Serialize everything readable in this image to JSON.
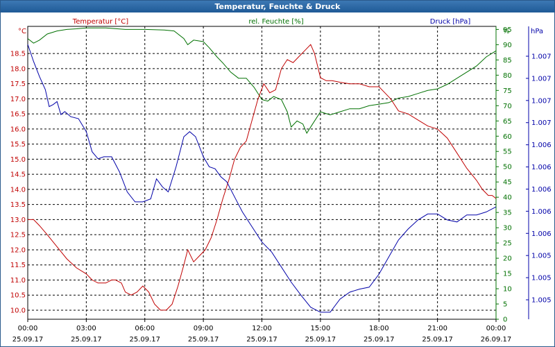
{
  "window": {
    "title": "Temperatur, Feuchte & Druck"
  },
  "colors": {
    "temperature": "#c00000",
    "humidity": "#007000",
    "pressure": "#0000a8",
    "grid": "#000000"
  },
  "chart_data": {
    "type": "line",
    "title": "Temperatur, Feuchte & Druck",
    "grid": true,
    "x_hours": [
      0,
      24
    ],
    "x_ticks": [
      {
        "hour": 0,
        "time": "00:00",
        "date": "25.09.17"
      },
      {
        "hour": 3,
        "time": "03:00",
        "date": "25.09.17"
      },
      {
        "hour": 6,
        "time": "06:00",
        "date": "25.09.17"
      },
      {
        "hour": 9,
        "time": "09:00",
        "date": "25.09.17"
      },
      {
        "hour": 12,
        "time": "12:00",
        "date": "25.09.17"
      },
      {
        "hour": 15,
        "time": "15:00",
        "date": "25.09.17"
      },
      {
        "hour": 18,
        "time": "18:00",
        "date": "25.09.17"
      },
      {
        "hour": 21,
        "time": "21:00",
        "date": "25.09.17"
      },
      {
        "hour": 24,
        "time": "00:00",
        "date": "26.09.17"
      }
    ],
    "temperature": {
      "label": "Temperatur [°C]",
      "unit": "°C",
      "range": [
        9.7,
        19.4
      ],
      "ticks": [
        "10.0",
        "10.5",
        "11.0",
        "11.5",
        "12.0",
        "12.5",
        "13.0",
        "13.5",
        "14.0",
        "14.5",
        "15.0",
        "15.5",
        "16.0",
        "16.5",
        "17.0",
        "17.5",
        "18.0",
        "18.5"
      ],
      "points": [
        [
          0,
          13.0
        ],
        [
          0.3,
          13.0
        ],
        [
          0.6,
          12.8
        ],
        [
          1,
          12.5
        ],
        [
          1.5,
          12.1
        ],
        [
          2,
          11.7
        ],
        [
          2.5,
          11.4
        ],
        [
          3,
          11.2
        ],
        [
          3.3,
          11.0
        ],
        [
          3.6,
          10.9
        ],
        [
          4,
          10.9
        ],
        [
          4.3,
          11.0
        ],
        [
          4.5,
          11.0
        ],
        [
          4.8,
          10.9
        ],
        [
          5,
          10.6
        ],
        [
          5.3,
          10.5
        ],
        [
          5.6,
          10.6
        ],
        [
          5.9,
          10.8
        ],
        [
          6.2,
          10.6
        ],
        [
          6.5,
          10.2
        ],
        [
          6.8,
          10.0
        ],
        [
          7.1,
          10.0
        ],
        [
          7.4,
          10.2
        ],
        [
          7.7,
          10.8
        ],
        [
          8,
          11.5
        ],
        [
          8.2,
          12.0
        ],
        [
          8.5,
          11.6
        ],
        [
          8.8,
          11.8
        ],
        [
          9.1,
          12.0
        ],
        [
          9.4,
          12.4
        ],
        [
          9.7,
          13.0
        ],
        [
          10,
          13.7
        ],
        [
          10.3,
          14.3
        ],
        [
          10.6,
          15.0
        ],
        [
          10.9,
          15.4
        ],
        [
          11.2,
          15.6
        ],
        [
          11.5,
          16.3
        ],
        [
          11.8,
          17.0
        ],
        [
          12.1,
          17.5
        ],
        [
          12.4,
          17.2
        ],
        [
          12.7,
          17.3
        ],
        [
          13,
          18.0
        ],
        [
          13.3,
          18.3
        ],
        [
          13.6,
          18.2
        ],
        [
          13.9,
          18.4
        ],
        [
          14.2,
          18.6
        ],
        [
          14.5,
          18.8
        ],
        [
          14.7,
          18.5
        ],
        [
          15,
          17.7
        ],
        [
          15.3,
          17.6
        ],
        [
          15.6,
          17.6
        ],
        [
          16,
          17.55
        ],
        [
          16.5,
          17.5
        ],
        [
          17,
          17.5
        ],
        [
          17.5,
          17.4
        ],
        [
          18,
          17.4
        ],
        [
          18.3,
          17.2
        ],
        [
          18.6,
          17.0
        ],
        [
          19,
          16.6
        ],
        [
          19.5,
          16.5
        ],
        [
          20,
          16.3
        ],
        [
          20.5,
          16.1
        ],
        [
          21,
          16.0
        ],
        [
          21.5,
          15.7
        ],
        [
          22,
          15.2
        ],
        [
          22.5,
          14.7
        ],
        [
          23,
          14.3
        ],
        [
          23.3,
          14.0
        ],
        [
          23.6,
          13.8
        ],
        [
          23.8,
          13.8
        ],
        [
          24,
          13.7
        ]
      ]
    },
    "humidity": {
      "label": "rel. Feuchte [%]",
      "unit": "%",
      "range": [
        0,
        96
      ],
      "ticks": [
        "0",
        "5",
        "10",
        "15",
        "20",
        "25",
        "30",
        "35",
        "40",
        "45",
        "50",
        "55",
        "60",
        "65",
        "70",
        "75",
        "80",
        "85",
        "90",
        "95"
      ],
      "points": [
        [
          0,
          92
        ],
        [
          0.3,
          90.5
        ],
        [
          0.6,
          91.5
        ],
        [
          1,
          93.5
        ],
        [
          1.5,
          94.5
        ],
        [
          2,
          95
        ],
        [
          2.5,
          95.2
        ],
        [
          3,
          95.5
        ],
        [
          4,
          95.5
        ],
        [
          5,
          95
        ],
        [
          6,
          95
        ],
        [
          7,
          94.8
        ],
        [
          7.5,
          94.5
        ],
        [
          8,
          92
        ],
        [
          8.2,
          90
        ],
        [
          8.5,
          91.5
        ],
        [
          9,
          91
        ],
        [
          9.3,
          89
        ],
        [
          9.7,
          86
        ],
        [
          10,
          84
        ],
        [
          10.4,
          81
        ],
        [
          10.8,
          79
        ],
        [
          11.2,
          79
        ],
        [
          11.6,
          76
        ],
        [
          12,
          72
        ],
        [
          12.3,
          71.5
        ],
        [
          12.6,
          73
        ],
        [
          13,
          72
        ],
        [
          13.3,
          68
        ],
        [
          13.5,
          63
        ],
        [
          13.8,
          65
        ],
        [
          14.1,
          64
        ],
        [
          14.3,
          61
        ],
        [
          14.6,
          64
        ],
        [
          15,
          68
        ],
        [
          15.5,
          67
        ],
        [
          16,
          68
        ],
        [
          16.5,
          69
        ],
        [
          17,
          69
        ],
        [
          17.5,
          70
        ],
        [
          18,
          70.5
        ],
        [
          18.5,
          71
        ],
        [
          19,
          72.5
        ],
        [
          19.5,
          73
        ],
        [
          20,
          74
        ],
        [
          20.5,
          75
        ],
        [
          21,
          75.5
        ],
        [
          21.5,
          77
        ],
        [
          22,
          79
        ],
        [
          22.5,
          81
        ],
        [
          23,
          83
        ],
        [
          23.5,
          86
        ],
        [
          24,
          88
        ]
      ]
    },
    "pressure": {
      "label": "Druck [hPa]",
      "unit": "hPa",
      "range": [
        1004.68,
        1007.6
      ],
      "ticks": [
        "1.005",
        "1.005",
        "1.005",
        "1.006",
        "1.006",
        "1.006",
        "1.006",
        "1.006",
        "1.007",
        "1.007",
        "1.007",
        "1.007"
      ],
      "points": [
        [
          0,
          1007.42
        ],
        [
          0.3,
          1007.25
        ],
        [
          0.6,
          1007.1
        ],
        [
          0.9,
          1006.97
        ],
        [
          1.1,
          1006.8
        ],
        [
          1.3,
          1006.82
        ],
        [
          1.5,
          1006.85
        ],
        [
          1.7,
          1006.72
        ],
        [
          1.9,
          1006.75
        ],
        [
          2.2,
          1006.7
        ],
        [
          2.6,
          1006.68
        ],
        [
          3,
          1006.55
        ],
        [
          3.3,
          1006.35
        ],
        [
          3.6,
          1006.28
        ],
        [
          3.9,
          1006.3
        ],
        [
          4.3,
          1006.3
        ],
        [
          4.7,
          1006.15
        ],
        [
          5.1,
          1005.95
        ],
        [
          5.5,
          1005.85
        ],
        [
          5.9,
          1005.85
        ],
        [
          6.3,
          1005.88
        ],
        [
          6.6,
          1006.08
        ],
        [
          6.9,
          1006.0
        ],
        [
          7.2,
          1005.95
        ],
        [
          7.6,
          1006.2
        ],
        [
          8,
          1006.5
        ],
        [
          8.3,
          1006.55
        ],
        [
          8.6,
          1006.5
        ],
        [
          9,
          1006.3
        ],
        [
          9.3,
          1006.2
        ],
        [
          9.6,
          1006.18
        ],
        [
          9.9,
          1006.1
        ],
        [
          10.2,
          1006.05
        ],
        [
          10.6,
          1005.9
        ],
        [
          11,
          1005.75
        ],
        [
          11.5,
          1005.6
        ],
        [
          12,
          1005.45
        ],
        [
          12.5,
          1005.35
        ],
        [
          13,
          1005.2
        ],
        [
          13.5,
          1005.05
        ],
        [
          14,
          1004.92
        ],
        [
          14.5,
          1004.8
        ],
        [
          15,
          1004.75
        ],
        [
          15.5,
          1004.75
        ],
        [
          16,
          1004.88
        ],
        [
          16.5,
          1004.95
        ],
        [
          17,
          1004.98
        ],
        [
          17.5,
          1005.0
        ],
        [
          18,
          1005.13
        ],
        [
          18.5,
          1005.3
        ],
        [
          19,
          1005.47
        ],
        [
          19.5,
          1005.58
        ],
        [
          20,
          1005.67
        ],
        [
          20.5,
          1005.73
        ],
        [
          21,
          1005.73
        ],
        [
          21.5,
          1005.67
        ],
        [
          22,
          1005.65
        ],
        [
          22.5,
          1005.72
        ],
        [
          23,
          1005.72
        ],
        [
          23.5,
          1005.75
        ],
        [
          24,
          1005.8
        ]
      ]
    }
  }
}
